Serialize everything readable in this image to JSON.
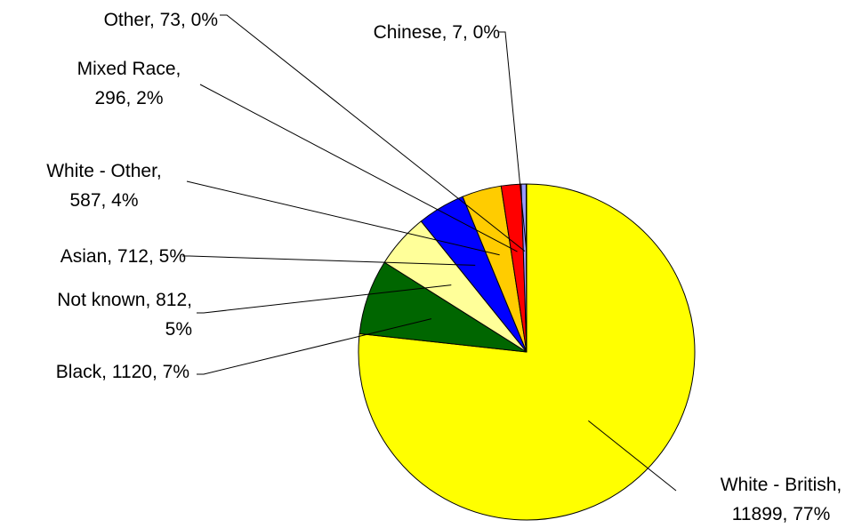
{
  "chart_data": {
    "type": "pie",
    "slices": [
      {
        "name": "White - British",
        "value": 11899,
        "percent": "77%",
        "color": "#FFFF00",
        "label_lines": [
          "White - British,",
          "11899, 77%"
        ]
      },
      {
        "name": "Black",
        "value": 1120,
        "percent": "7%",
        "color": "#006600",
        "label_lines": [
          "Black, 1120, 7%"
        ]
      },
      {
        "name": "Not known",
        "value": 812,
        "percent": "5%",
        "color": "#FFFF99",
        "label_lines": [
          "Not known, 812,",
          "5%"
        ]
      },
      {
        "name": "Asian",
        "value": 712,
        "percent": "5%",
        "color": "#0000FF",
        "label_lines": [
          "Asian, 712, 5%"
        ]
      },
      {
        "name": "White - Other",
        "value": 587,
        "percent": "4%",
        "color": "#FFCC00",
        "label_lines": [
          "White - Other,",
          "587, 4%"
        ]
      },
      {
        "name": "Mixed Race",
        "value": 296,
        "percent": "2%",
        "color": "#FF0000",
        "label_lines": [
          "Mixed Race,",
          "296, 2%"
        ]
      },
      {
        "name": "Other",
        "value": 73,
        "percent": "0%",
        "color": "#9999FF",
        "label_lines": [
          "Other, 73, 0%"
        ]
      },
      {
        "name": "Chinese",
        "value": 7,
        "percent": "0%",
        "color": "#CCCCFF",
        "label_lines": [
          "Chinese, 7, 0%"
        ]
      }
    ],
    "start_angle": "12 o'clock",
    "direction": "clockwise",
    "legend": "none",
    "data_labels": "outside with leader lines"
  }
}
